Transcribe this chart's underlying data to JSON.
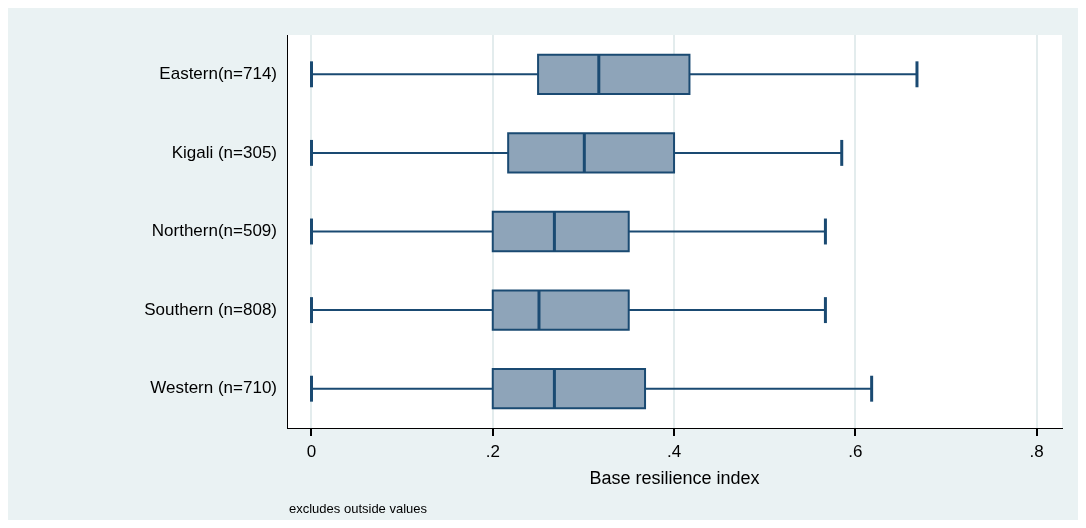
{
  "chart_data": {
    "type": "box",
    "orientation": "horizontal",
    "xlabel": "Base resilience index",
    "annotations": [
      "excludes outside values"
    ],
    "categories": [
      "Eastern(n=714)",
      "Kigali (n=305)",
      "Northern(n=509)",
      "Southern (n=808)",
      "Western (n=710)"
    ],
    "series": [
      {
        "color": "#8ea4b9",
        "boxes": [
          {
            "low": 0,
            "q1": 0.25,
            "median": 0.317,
            "q3": 0.417,
            "high": 0.668
          },
          {
            "low": 0,
            "q1": 0.217,
            "median": 0.301,
            "q3": 0.4,
            "high": 0.585
          },
          {
            "low": 0,
            "q1": 0.2,
            "median": 0.268,
            "q3": 0.35,
            "high": 0.567
          },
          {
            "low": 0,
            "q1": 0.2,
            "median": 0.251,
            "q3": 0.35,
            "high": 0.567
          },
          {
            "low": 0,
            "q1": 0.2,
            "median": 0.268,
            "q3": 0.368,
            "high": 0.618
          }
        ]
      }
    ],
    "xlim": [
      -0.027,
      0.828
    ],
    "xticks": [
      0,
      {
        "value": 0.2,
        "label": ".2"
      },
      {
        "value": 0.4,
        "label": ".4"
      },
      {
        "value": 0.6,
        "label": ".6"
      },
      {
        "value": 0.8,
        "label": ".8"
      }
    ],
    "grid": "x"
  }
}
